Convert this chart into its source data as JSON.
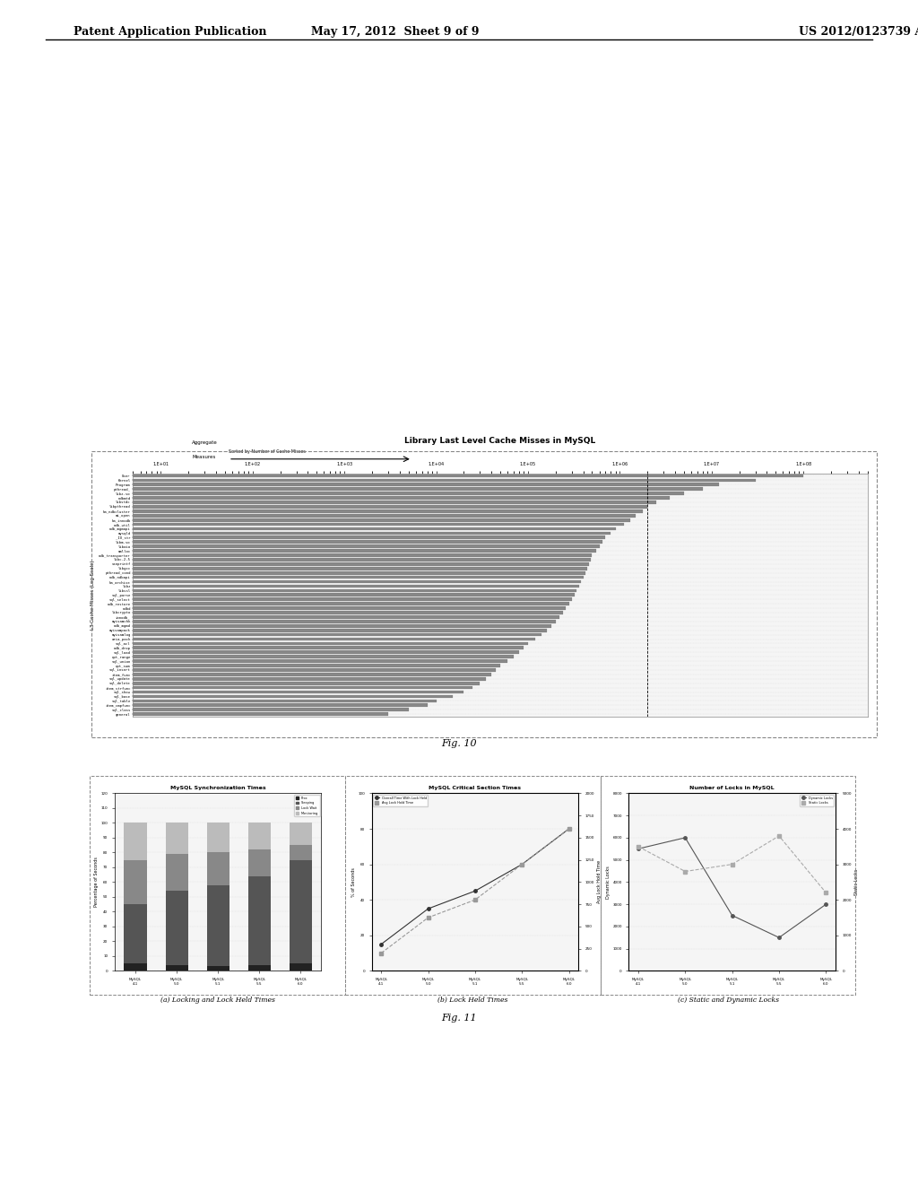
{
  "page_header_left": "Patent Application Publication",
  "page_header_center": "May 17, 2012  Sheet 9 of 9",
  "page_header_right": "US 2012/0123739 A1",
  "fig10_title": "Library Last Level Cache Misses in MySQL",
  "fig10_ylabel": "L3 Cache Misses (Log Scale)",
  "fig10_num_bars": 55,
  "fig10_bar_values": [
    100000000,
    30000000,
    12000000,
    8000000,
    5000000,
    3500000,
    2500000,
    2000000,
    1800000,
    1500000,
    1300000,
    1100000,
    900000,
    800000,
    700000,
    650000,
    600000,
    550000,
    500000,
    480000,
    460000,
    440000,
    420000,
    400000,
    380000,
    360000,
    340000,
    320000,
    300000,
    280000,
    260000,
    240000,
    220000,
    200000,
    180000,
    160000,
    140000,
    120000,
    100000,
    90000,
    80000,
    70000,
    60000,
    50000,
    45000,
    40000,
    35000,
    30000,
    25000,
    20000,
    15000,
    10000,
    8000,
    5000,
    3000
  ],
  "fig10_caption": "Fig. 10",
  "fig11_caption": "Fig. 11",
  "fig11a_title": "MySQL Synchronization Times",
  "fig11a_ylabel": "Percentage of Seconds",
  "fig11b_title": "MySQL Critical Section Times",
  "fig11b_ylabel_left": "% of Seconds",
  "fig11b_ylabel_right": "Avg Lock Hold Time",
  "fig11b_legend": [
    "Overall Time With Lock Held",
    "Avg Lock Hold Time"
  ],
  "fig11c_title": "Number of Locks in MySQL",
  "fig11c_ylabel_left": "Dynamic Locks",
  "fig11c_ylabel_right": "Static Locks",
  "fig11c_legend": [
    "Dynamic Locks",
    "Static Locks"
  ],
  "fig11a_caption": "(a) Locking and Lock Held Times",
  "fig11b_caption": "(b) Lock Held Times",
  "fig11c_caption": "(c) Static and Dynamic Locks",
  "fig11a_data": {
    "proc": [
      5,
      4,
      3,
      4,
      5
    ],
    "sleeping": [
      40,
      50,
      55,
      60,
      70
    ],
    "lock_wait": [
      30,
      25,
      22,
      18,
      10
    ],
    "monitoring": [
      25,
      21,
      20,
      18,
      15
    ]
  },
  "fig11b_data": {
    "x": [
      0,
      1,
      2,
      3,
      4
    ],
    "overall_pct": [
      15,
      35,
      45,
      60,
      80
    ],
    "avg_hold": [
      200,
      600,
      800,
      1200,
      1600
    ]
  },
  "fig11c_data": {
    "x": [
      0,
      1,
      2,
      3,
      4
    ],
    "dynamic": [
      5500,
      6000,
      2500,
      1500,
      3000
    ],
    "static": [
      3500,
      2800,
      3000,
      3800,
      2200
    ]
  },
  "background_color": "#ffffff",
  "bar_color": "#888888"
}
